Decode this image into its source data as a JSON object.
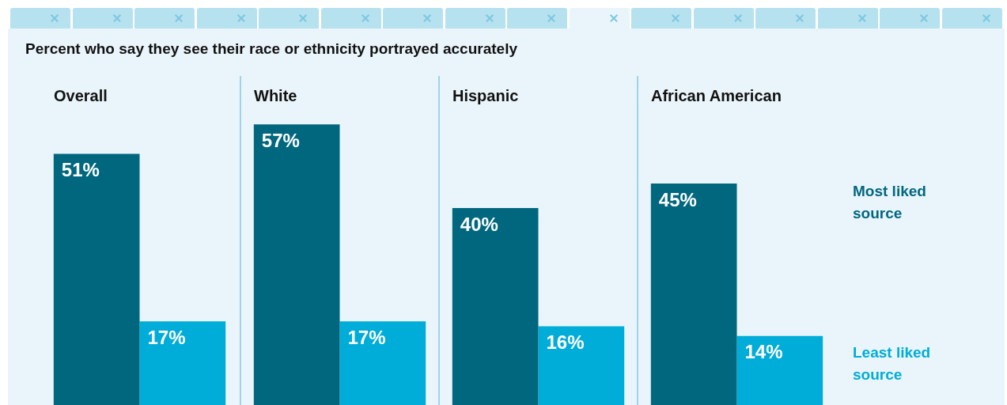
{
  "chart_data": [
    {
      "type": "bar",
      "title": "Percent who say they see their race or ethnicity portrayed accurately",
      "subtitle": "Overall",
      "categories": [
        null
      ],
      "series": [
        {
          "color": "#00677f",
          "values": [
            51
          ],
          "value_labels": [
            "51%"
          ]
        },
        {
          "color": "#00acd8",
          "values": [
            17
          ],
          "value_labels": [
            "17%"
          ]
        }
      ]
    },
    {
      "type": "bar",
      "subtitle": "White",
      "categories": [
        null
      ],
      "series": [
        {
          "color": "#00677f",
          "values": [
            57
          ],
          "value_labels": [
            "57%"
          ]
        },
        {
          "color": "#00acd8",
          "values": [
            17
          ],
          "value_labels": [
            "17%"
          ]
        }
      ]
    },
    {
      "type": "bar",
      "subtitle": "Hispanic",
      "categories": [
        null
      ],
      "series": [
        {
          "color": "#00677f",
          "values": [
            40
          ],
          "value_labels": [
            "40%"
          ]
        },
        {
          "color": "#00acd8",
          "values": [
            16
          ],
          "value_labels": [
            "16%"
          ]
        }
      ]
    },
    {
      "type": "bar",
      "subtitle": "African American",
      "categories": [
        null
      ],
      "legend": "right",
      "series": [
        {
          "name": "Most liked source",
          "color": "#00677f",
          "values": [
            45
          ],
          "value_labels": [
            "45%"
          ]
        },
        {
          "name": "Least liked source",
          "color": "#00acd8",
          "values": [
            14
          ],
          "value_labels": [
            "14%"
          ]
        }
      ]
    }
  ]
}
